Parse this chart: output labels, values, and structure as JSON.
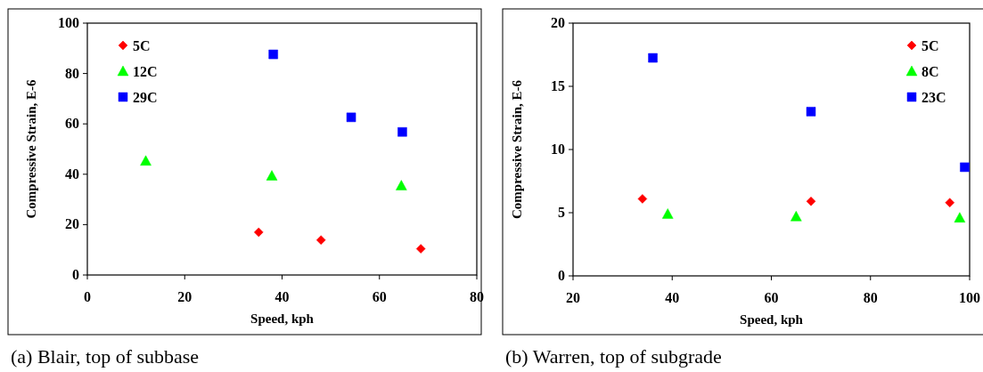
{
  "chart_data": [
    {
      "type": "scatter",
      "title": "(a) Blair, top of subbase",
      "xlabel": "Speed, kph",
      "ylabel": "Compressive Strain, E-6",
      "xlim": [
        0,
        80
      ],
      "xticks": [
        0,
        20,
        40,
        60,
        80
      ],
      "ylim": [
        0,
        100
      ],
      "yticks": [
        0,
        20,
        40,
        60,
        80,
        100
      ],
      "grid": false,
      "legend": "top left",
      "series": [
        {
          "name": "5C",
          "color": "#ff0000",
          "marker": "diamond",
          "x": [
            35.2,
            48.0,
            68.5
          ],
          "values": [
            17.0,
            13.9,
            10.4
          ]
        },
        {
          "name": "12C",
          "color": "#00ff00",
          "marker": "triangle",
          "x": [
            12.0,
            37.9,
            64.5
          ],
          "values": [
            45.3,
            39.4,
            35.5
          ]
        },
        {
          "name": "29C",
          "color": "#0000ff",
          "marker": "square",
          "x": [
            38.2,
            54.2,
            64.7
          ],
          "values": [
            87.6,
            62.6,
            56.8
          ]
        }
      ]
    },
    {
      "type": "scatter",
      "title": "(b) Warren, top of subgrade",
      "xlabel": "Speed, kph",
      "ylabel": "Compressive Strain, E-6",
      "xlim": [
        20,
        100
      ],
      "xticks": [
        20,
        40,
        60,
        80,
        100
      ],
      "ylim": [
        0,
        20
      ],
      "yticks": [
        0,
        5,
        10,
        15,
        20
      ],
      "grid": false,
      "legend": "top right",
      "series": [
        {
          "name": "5C",
          "color": "#ff0000",
          "marker": "diamond",
          "x": [
            34.0,
            68.0,
            96.0
          ],
          "values": [
            6.1,
            5.9,
            5.8
          ]
        },
        {
          "name": "8C",
          "color": "#00ff00",
          "marker": "triangle",
          "x": [
            39.1,
            65.0,
            98.0
          ],
          "values": [
            4.9,
            4.7,
            4.6
          ]
        },
        {
          "name": "23C",
          "color": "#0000ff",
          "marker": "square",
          "x": [
            36.1,
            68.0,
            99.0
          ],
          "values": [
            17.25,
            13.0,
            8.6
          ]
        }
      ]
    }
  ]
}
